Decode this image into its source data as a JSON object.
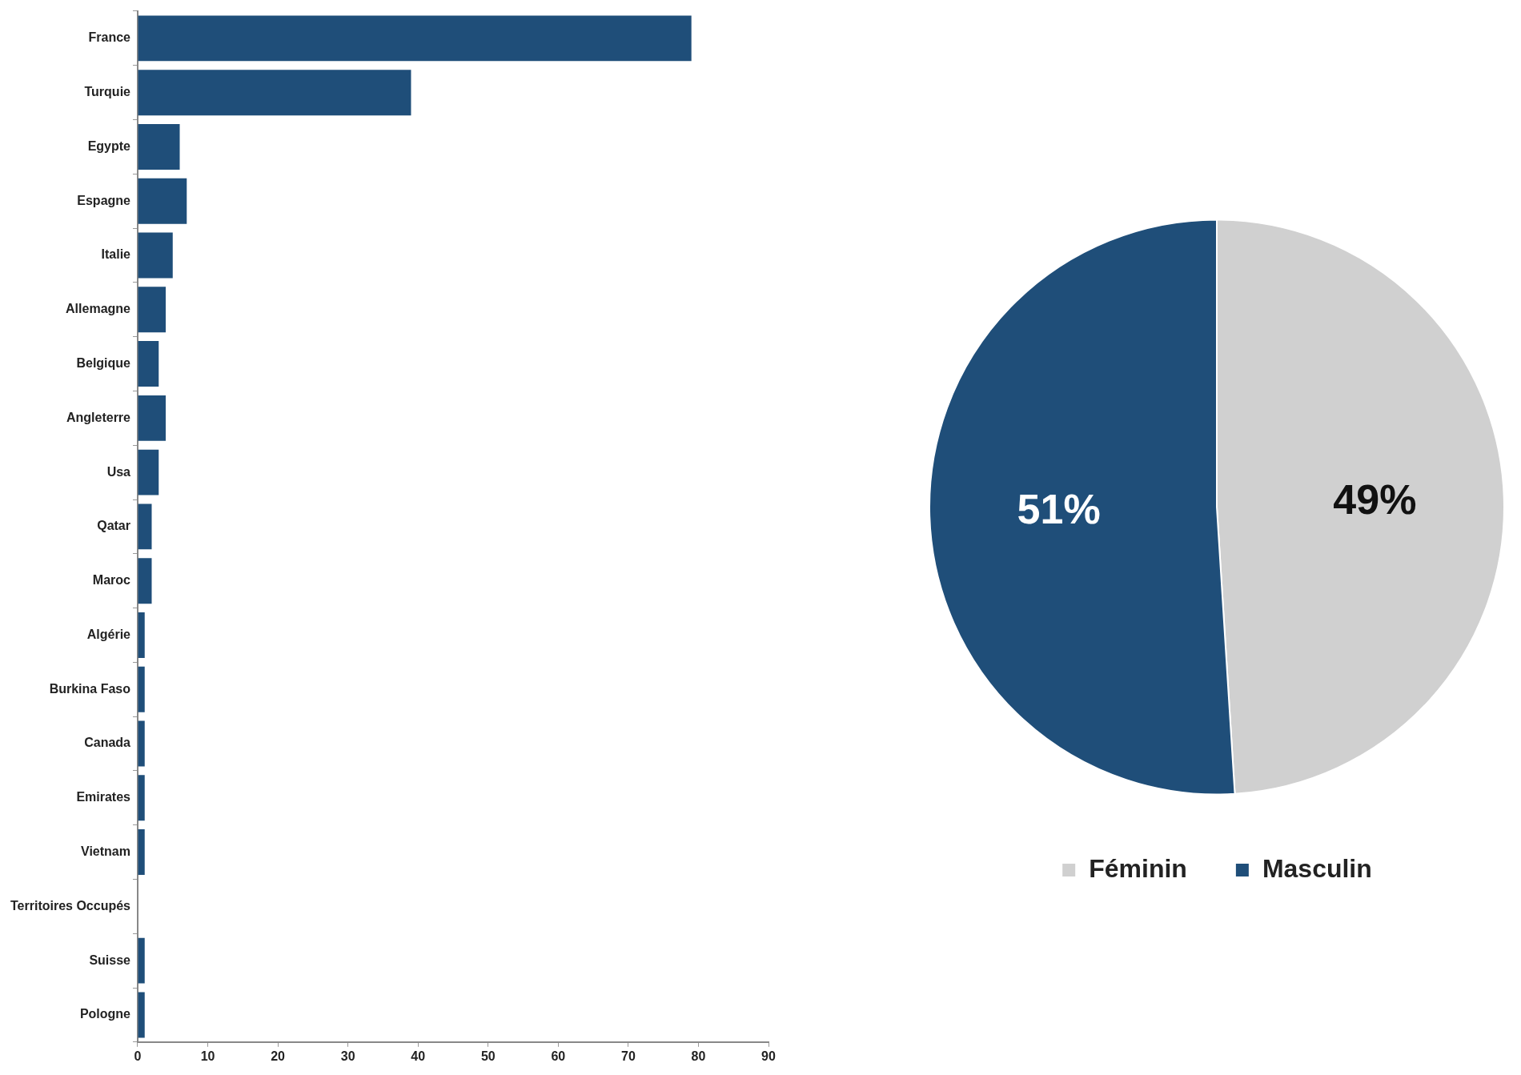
{
  "chart_data": [
    {
      "type": "bar",
      "orientation": "horizontal",
      "categories": [
        "France",
        "Turquie",
        "Egypte",
        "Espagne",
        "Italie",
        "Allemagne",
        "Belgique",
        "Angleterre",
        "Usa",
        "Qatar",
        "Maroc",
        "Algérie",
        "Burkina Faso",
        "Canada",
        "Emirates",
        "Vietnam",
        "Territoires Occupés",
        "Suisse",
        "Pologne"
      ],
      "values": [
        79,
        39,
        6,
        7,
        5,
        4,
        3,
        4,
        3,
        2,
        2,
        1,
        1,
        1,
        1,
        1,
        0,
        1,
        1
      ],
      "color": "#1f4e79",
      "xlim": [
        0,
        90
      ],
      "xticks": [
        0,
        10,
        20,
        30,
        40,
        50,
        60,
        70,
        80,
        90
      ]
    },
    {
      "type": "pie",
      "categories": [
        "Féminin",
        "Masculin"
      ],
      "values": [
        49,
        51
      ],
      "colors": [
        "#d0d0d0",
        "#1f4e79"
      ],
      "value_labels": [
        "49%",
        "51%"
      ],
      "legend": "bottom"
    }
  ]
}
